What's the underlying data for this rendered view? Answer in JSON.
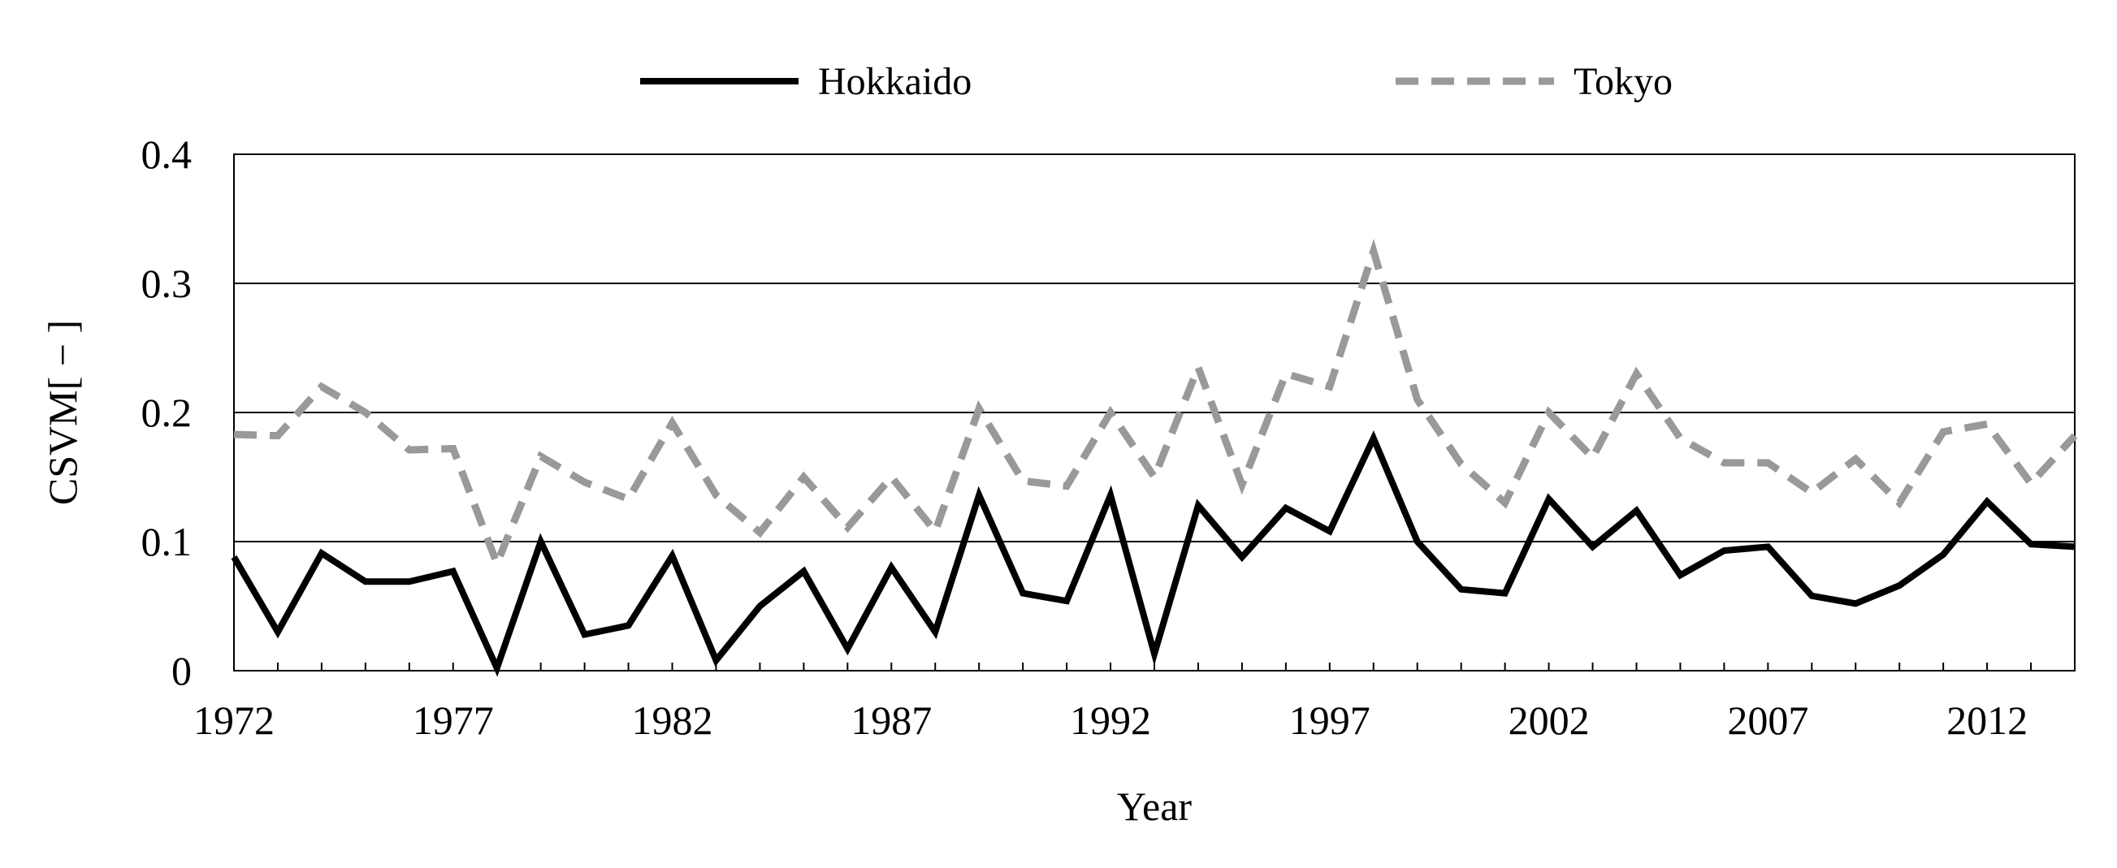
{
  "chart_data": {
    "type": "line",
    "title": "",
    "xlabel": "Year",
    "ylabel": "CSVM[ − ]",
    "xlim": [
      1972,
      2014
    ],
    "ylim": [
      0,
      0.4
    ],
    "x_ticks": [
      "1972",
      "1977",
      "1982",
      "1987",
      "1992",
      "1997",
      "2002",
      "2007",
      "2012"
    ],
    "y_ticks": [
      "0",
      "0.1",
      "0.2",
      "0.3",
      "0.4"
    ],
    "grid": "horizontal",
    "legend": "top-center",
    "x": [
      1972,
      1973,
      1974,
      1975,
      1976,
      1977,
      1978,
      1979,
      1980,
      1981,
      1982,
      1983,
      1984,
      1985,
      1986,
      1987,
      1988,
      1989,
      1990,
      1991,
      1992,
      1993,
      1994,
      1995,
      1996,
      1997,
      1998,
      1999,
      2000,
      2001,
      2002,
      2003,
      2004,
      2005,
      2006,
      2007,
      2008,
      2009,
      2010,
      2011,
      2012,
      2013,
      2014
    ],
    "series": [
      {
        "name": "Hokkaido",
        "color": "#000000",
        "style": "solid",
        "values": [
          0.088,
          0.03,
          0.091,
          0.069,
          0.069,
          0.077,
          0.002,
          0.1,
          0.028,
          0.035,
          0.089,
          0.008,
          0.05,
          0.077,
          0.017,
          0.08,
          0.03,
          0.136,
          0.06,
          0.054,
          0.136,
          0.013,
          0.128,
          0.088,
          0.126,
          0.108,
          0.18,
          0.1,
          0.063,
          0.06,
          0.133,
          0.096,
          0.124,
          0.074,
          0.093,
          0.096,
          0.058,
          0.052,
          0.066,
          0.09,
          0.131,
          0.098,
          0.096
        ]
      },
      {
        "name": "Tokyo",
        "color": "#999999",
        "style": "dashed",
        "values": [
          0.183,
          0.182,
          0.22,
          0.2,
          0.171,
          0.172,
          0.083,
          0.166,
          0.146,
          0.133,
          0.192,
          0.136,
          0.107,
          0.15,
          0.111,
          0.15,
          0.108,
          0.203,
          0.147,
          0.143,
          0.2,
          0.15,
          0.235,
          0.144,
          0.23,
          0.22,
          0.325,
          0.21,
          0.16,
          0.13,
          0.2,
          0.165,
          0.23,
          0.18,
          0.161,
          0.161,
          0.138,
          0.164,
          0.13,
          0.185,
          0.191,
          0.145,
          0.182
        ]
      }
    ]
  }
}
